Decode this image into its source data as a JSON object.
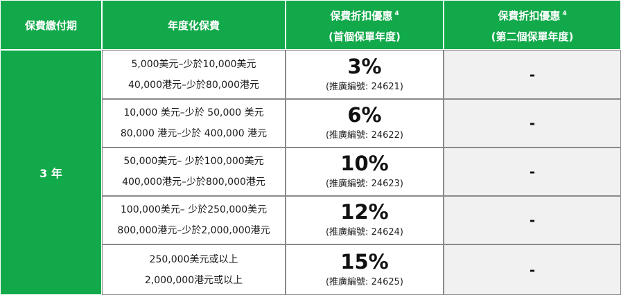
{
  "headers": {
    "term": "保費繳付期",
    "premium": "年度化保費",
    "discount_first_line1": "保費折扣優惠",
    "discount_first_sup": "4",
    "discount_first_line2": "(首個保單年度)",
    "discount_second_line1": "保費折扣優惠",
    "discount_second_sup": "4",
    "discount_second_line2": "(第二個保單年度)"
  },
  "term": "3 年",
  "rows": [
    {
      "usd": "5,000美元–少於10,000美元",
      "hkd": "40,000港元–少於80,000港元",
      "discount": "3%",
      "code": "(推廣編號: 24621)",
      "second": "-"
    },
    {
      "usd": "10,000 美元–少於 50,000 美元",
      "hkd": "80,000 港元–少於 400,000 港元",
      "discount": "6%",
      "code": "(推廣編號: 24622)",
      "second": "-"
    },
    {
      "usd": "50,000美元– 少於100,000美元",
      "hkd": "400,000港元–少於800,000港元",
      "discount": "10%",
      "code": "(推廣編號: 24623)",
      "second": "-"
    },
    {
      "usd": "100,000美元– 少於250,000美元",
      "hkd": "800,000港元–少於2,000,000港元",
      "discount": "12%",
      "code": "(推廣編號: 24624)",
      "second": "-"
    },
    {
      "usd": "250,000美元或以上",
      "hkd": "2,000,000港元或以上",
      "discount": "15%",
      "code": "(推廣編號: 24625)",
      "second": "-"
    }
  ],
  "colors": {
    "header_green": "#12a94a",
    "dash_bg": "#f1f1f1"
  }
}
